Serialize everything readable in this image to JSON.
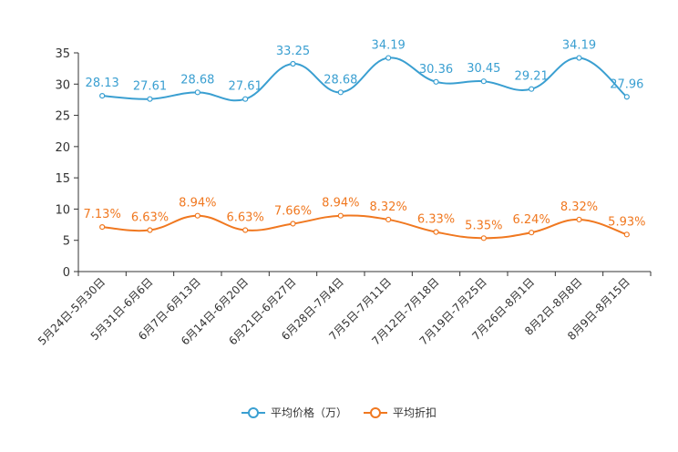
{
  "chart_data": {
    "type": "line",
    "title": "",
    "xlabel": "",
    "ylabel": "",
    "categories": [
      "5月24日-5月30日",
      "5月31日-6月6日",
      "6月7日-6月13日",
      "6月14日-6月20日",
      "6月21日-6月27日",
      "6月28日-7月4日",
      "7月5日-7月11日",
      "7月12日-7月18日",
      "7月19日-7月25日",
      "7月26日-8月1日",
      "8月2日-8月8日",
      "8月9日-8月15日"
    ],
    "ylim": [
      0,
      35
    ],
    "yticks": [
      0,
      5,
      10,
      15,
      20,
      25,
      30,
      35
    ],
    "series": [
      {
        "name": "平均价格（万）",
        "color": "#3a9fd1",
        "values": [
          28.13,
          27.61,
          28.68,
          27.61,
          33.25,
          28.68,
          34.19,
          30.36,
          30.45,
          29.21,
          34.19,
          27.96
        ],
        "labels": [
          "28.13",
          "27.61",
          "28.68",
          "27.61",
          "33.25",
          "28.68",
          "34.19",
          "30.36",
          "30.45",
          "29.21",
          "34.19",
          "27.96"
        ]
      },
      {
        "name": "平均折扣",
        "color": "#f07820",
        "values": [
          7.13,
          6.63,
          8.94,
          6.63,
          7.66,
          8.94,
          8.32,
          6.33,
          5.35,
          6.24,
          8.32,
          5.93
        ],
        "labels": [
          "7.13%",
          "6.63%",
          "8.94%",
          "6.63%",
          "7.66%",
          "8.94%",
          "8.32%",
          "6.33%",
          "5.35%",
          "6.24%",
          "8.32%",
          "5.93%"
        ]
      }
    ],
    "legend_position": "bottom-center"
  }
}
